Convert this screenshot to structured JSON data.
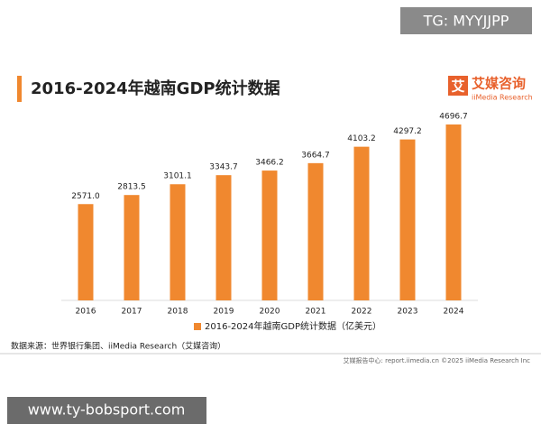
{
  "chart_data": {
    "type": "bar",
    "title": "2016-2024年越南GDP统计数据",
    "categories": [
      "2016",
      "2017",
      "2018",
      "2019",
      "2020",
      "2021",
      "2022",
      "2023",
      "2024"
    ],
    "series": [
      {
        "name": "2016-2024年越南GDP统计数据（亿美元）",
        "color": "#f0882f",
        "values": [
          2571.0,
          2813.5,
          3101.1,
          3343.7,
          3466.2,
          3664.7,
          4103.2,
          4297.2,
          4696.7
        ],
        "value_labels": [
          "2571.0",
          "2813.5",
          "3101.1",
          "3343.7",
          "3466.2",
          "3664.7",
          "4103.2",
          "4297.2",
          "4696.7"
        ]
      }
    ]
  },
  "logo": {
    "icon": "艾",
    "name": "艾媒咨询",
    "sub": "iiMedia Research"
  },
  "source": "数据来源：世界银行集团、iiMedia Research（艾媒咨询）",
  "footer": "艾媒报告中心: report.iimedia.cn   ©2025   iiMedia Research Inc",
  "watermark_top": "TG: MYYJJPP",
  "watermark_bottom": "www.ty-bobsport.com"
}
